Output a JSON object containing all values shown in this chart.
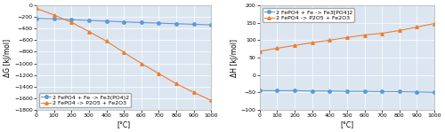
{
  "x": [
    0,
    100,
    200,
    300,
    400,
    500,
    600,
    700,
    800,
    900,
    1000
  ],
  "dG_blue": [
    -220,
    -230,
    -245,
    -258,
    -270,
    -283,
    -295,
    -305,
    -315,
    -325,
    -335
  ],
  "dG_orange": [
    -50,
    -165,
    -290,
    -450,
    -615,
    -810,
    -1000,
    -1175,
    -1350,
    -1500,
    -1640
  ],
  "dH_blue": [
    -45,
    -45,
    -45,
    -46,
    -46,
    -47,
    -47,
    -48,
    -48,
    -49,
    -50
  ],
  "dH_orange": [
    68,
    77,
    85,
    93,
    100,
    108,
    115,
    120,
    128,
    138,
    148
  ],
  "blue_color": "#5b9bd5",
  "orange_color": "#ed7d31",
  "dG_ylim": [
    -1800,
    0
  ],
  "dG_yticks": [
    0,
    -200,
    -400,
    -600,
    -800,
    -1000,
    -1200,
    -1400,
    -1600,
    -1800
  ],
  "dH_ylim": [
    -100,
    200
  ],
  "dH_yticks": [
    -100,
    -50,
    0,
    50,
    100,
    150,
    200
  ],
  "xlim": [
    0,
    1000
  ],
  "xticks": [
    0,
    100,
    200,
    300,
    400,
    500,
    600,
    700,
    800,
    900,
    1000
  ],
  "dG_ylabel": "ΔG [kJ/mol]",
  "dH_ylabel": "ΔH [kJ/mol]",
  "xlabel": "[°C]",
  "legend1_blue": "2 FePO4 + Fe -> Fe3(PO4)2",
  "legend1_orange": "2 FePO4 -> P2O5 + Fe2O3",
  "legend2_blue": "2 FePO4 + Fe -> Fe3[PO4]2",
  "legend2_orange": "2 FePO4 -> P2O5 + Fe2O3",
  "plot_bg": "#dce6f1",
  "fig_bg": "#ffffff",
  "tick_fontsize": 4.5,
  "label_fontsize": 5.5,
  "legend_fontsize": 4.5,
  "marker_size": 2.5,
  "line_width": 0.8
}
